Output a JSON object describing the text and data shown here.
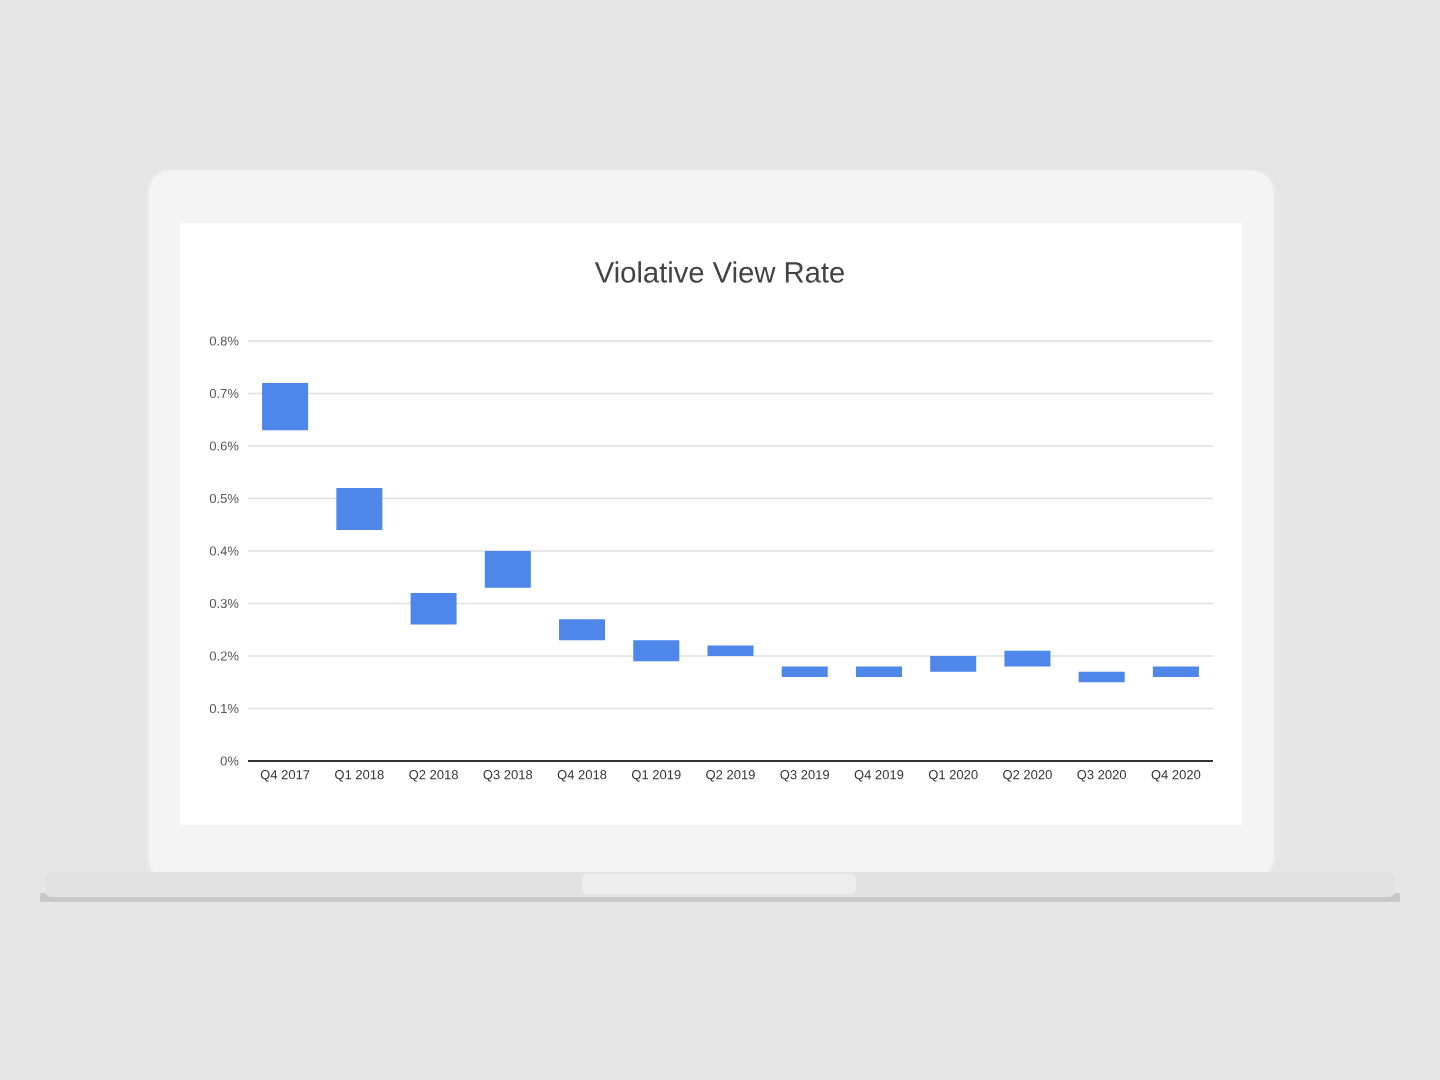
{
  "chart_data": {
    "type": "bar",
    "title": "Violative View Rate",
    "categories": [
      "Q4 2017",
      "Q1 2018",
      "Q2 2018",
      "Q3 2018",
      "Q4 2018",
      "Q1 2019",
      "Q2 2019",
      "Q3 2019",
      "Q4 2019",
      "Q1 2020",
      "Q2 2020",
      "Q3 2020",
      "Q4 2020"
    ],
    "base": [
      0.63,
      0.44,
      0.26,
      0.33,
      0.23,
      0.19,
      0.2,
      0.16,
      0.16,
      0.17,
      0.18,
      0.15,
      0.16
    ],
    "values": [
      0.09,
      0.08,
      0.06,
      0.07,
      0.04,
      0.04,
      0.02,
      0.02,
      0.02,
      0.03,
      0.03,
      0.02,
      0.02
    ],
    "color": "#4e86ea",
    "ylim": [
      0,
      0.8
    ],
    "yticks": [
      {
        "value": 0,
        "label": "0%"
      },
      {
        "value": 0.1,
        "label": "0.1%"
      },
      {
        "value": 0.2,
        "label": "0.2%"
      },
      {
        "value": 0.3,
        "label": "0.3%"
      },
      {
        "value": 0.4,
        "label": "0.4%"
      },
      {
        "value": 0.5,
        "label": "0.5%"
      },
      {
        "value": 0.6,
        "label": "0.6%"
      },
      {
        "value": 0.7,
        "label": "0.7%"
      },
      {
        "value": 0.8,
        "label": "0.8%"
      }
    ],
    "grid": "y"
  }
}
